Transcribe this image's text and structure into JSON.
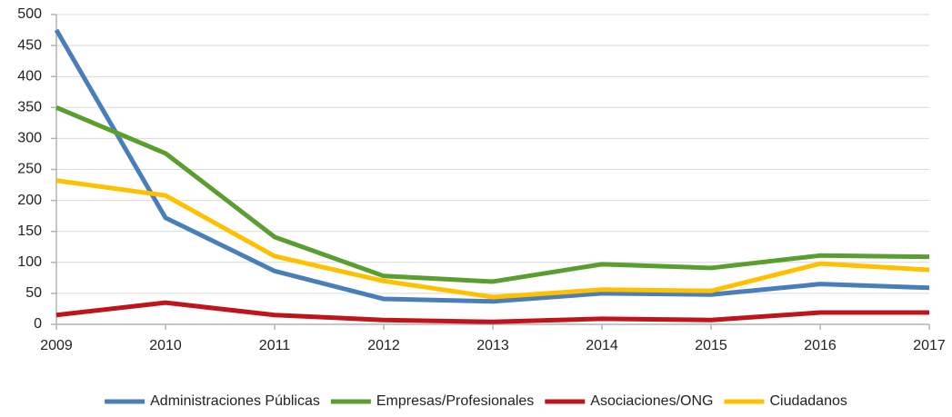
{
  "chart_data": {
    "type": "line",
    "x": [
      2009,
      2010,
      2011,
      2012,
      2013,
      2014,
      2015,
      2016,
      2017
    ],
    "series": [
      {
        "name": "Administraciones Públicas",
        "color": "#4a7ebb",
        "values": [
          475,
          172,
          86,
          41,
          37,
          50,
          48,
          65,
          59
        ]
      },
      {
        "name": "Empresas/Profesionales",
        "color": "#5a9e2f",
        "values": [
          350,
          276,
          141,
          78,
          69,
          97,
          91,
          111,
          109
        ]
      },
      {
        "name": "Asociaciones/ONG",
        "color": "#c0141c",
        "values": [
          15,
          35,
          15,
          7,
          4,
          9,
          7,
          19,
          19
        ]
      },
      {
        "name": "Ciudadanos",
        "color": "#ffc000",
        "values": [
          232,
          208,
          110,
          70,
          44,
          56,
          54,
          98,
          88
        ]
      }
    ],
    "xlim": [
      2009,
      2017
    ],
    "xticks": [
      2009,
      2010,
      2011,
      2012,
      2013,
      2014,
      2015,
      2016,
      2017
    ],
    "ylim": [
      0,
      500
    ],
    "yticks": [
      0,
      50,
      100,
      150,
      200,
      250,
      300,
      350,
      400,
      450,
      500
    ],
    "grid": true,
    "legend": "bottom"
  }
}
